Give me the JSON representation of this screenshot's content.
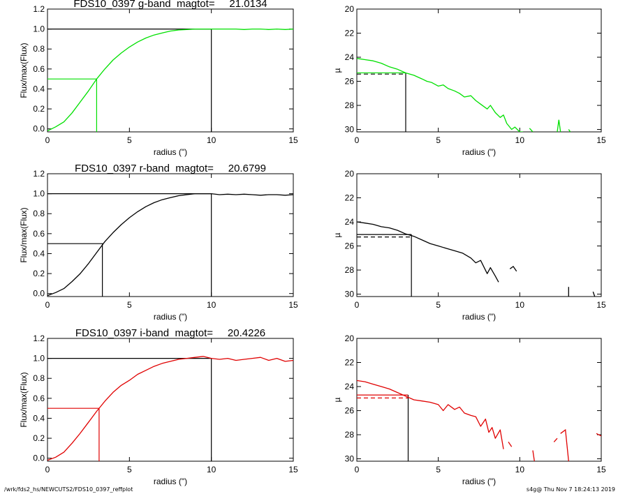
{
  "footer": {
    "path": "/wrk/fds2_hs/NEWCUTS2/FDS10_0397_reffplot",
    "stamp": "s4g@  Thu Nov  7 18:24:13 2019"
  },
  "chart_data": [
    {
      "type": "line",
      "band": "g",
      "title": "FDS10_0397 g-band  magtot=     21.0134",
      "xlabel": "radius (\")",
      "ylabel": "Flux/max(Flux)",
      "xlim": [
        0,
        15
      ],
      "ylim": [
        -0.03,
        1.2
      ],
      "xticks": [
        0,
        5,
        10,
        15
      ],
      "xtick_labels": [
        "0",
        "5",
        "10",
        "15"
      ],
      "yticks": [
        0,
        0.2,
        0.4,
        0.6,
        0.8,
        1.0,
        1.2
      ],
      "ytick_labels": [
        "0.0",
        "0.2",
        "0.4",
        "0.6",
        "0.8",
        "1.0",
        "1.2"
      ],
      "color": "#00e000",
      "series": [
        {
          "x": [
            0,
            0.5,
            1,
            1.5,
            2,
            2.5,
            3,
            3.5,
            4,
            4.5,
            5,
            5.5,
            6,
            6.5,
            7,
            7.5,
            8,
            8.5,
            9,
            9.5,
            10,
            10.5,
            11,
            11.5,
            12,
            12.5,
            13,
            13.5,
            14,
            14.5,
            15
          ],
          "y": [
            -0.02,
            0.02,
            0.07,
            0.16,
            0.27,
            0.38,
            0.5,
            0.6,
            0.69,
            0.76,
            0.82,
            0.87,
            0.91,
            0.94,
            0.96,
            0.98,
            0.99,
            0.995,
            1.0,
            1.0,
            1.0,
            1.0,
            1.0,
            1.0,
            0.995,
            1.0,
            1.0,
            0.995,
            1.0,
            0.995,
            1.0
          ]
        }
      ],
      "reference_lines": {
        "half_light": {
          "x": 3.0,
          "y": 0.5,
          "color": "#00e000"
        },
        "total": {
          "x": 10.0,
          "y": 1.0,
          "color": "#000000"
        }
      }
    },
    {
      "type": "line",
      "band": "g",
      "title": "",
      "xlabel": "radius (\")",
      "ylabel": "µ",
      "xlim": [
        0,
        15
      ],
      "ylim": [
        30.2,
        20
      ],
      "y_inverted": true,
      "xticks": [
        0,
        5,
        10,
        15
      ],
      "xtick_labels": [
        "0",
        "5",
        "10",
        "15"
      ],
      "yticks": [
        20,
        22,
        24,
        26,
        28,
        30
      ],
      "ytick_labels": [
        "20",
        "22",
        "24",
        "26",
        "28",
        "30"
      ],
      "color": "#00e000",
      "series": [
        {
          "x": [
            0,
            0.5,
            1,
            1.5,
            2,
            2.5,
            3,
            3.5,
            4,
            4.3,
            4.6,
            5,
            5.3,
            5.6,
            6,
            6.3,
            6.6,
            7,
            7.3,
            7.6,
            8,
            8.2,
            8.5,
            8.8,
            9,
            9.2,
            9.5,
            9.7,
            10,
            10.2
          ],
          "y": [
            24.1,
            24.2,
            24.3,
            24.5,
            24.8,
            25.0,
            25.3,
            25.5,
            25.8,
            26.0,
            26.1,
            26.4,
            26.3,
            26.6,
            26.8,
            27.0,
            27.3,
            27.2,
            27.6,
            27.9,
            28.3,
            28.0,
            28.6,
            29.0,
            28.8,
            29.5,
            30.0,
            29.8,
            30.3,
            30.4
          ]
        }
      ],
      "extra_segments": [
        {
          "x": [
            10.6,
            10.8
          ],
          "y": [
            29.9,
            30.2
          ]
        },
        {
          "x": [
            12.3,
            12.4,
            12.5
          ],
          "y": [
            30.3,
            29.2,
            30.3
          ]
        },
        {
          "x": [
            13.0,
            13.1
          ],
          "y": [
            30.0,
            30.2
          ]
        }
      ],
      "reference_lines": {
        "mu_solid": {
          "x": 3.0,
          "y": 25.3,
          "color": "#00e000"
        },
        "mu_dashed": {
          "y": 25.4,
          "color": "#000000",
          "dash": true
        },
        "radius": {
          "x": 3.0,
          "color": "#000000"
        }
      }
    },
    {
      "type": "line",
      "band": "r",
      "title": "FDS10_0397 r-band  magtot=     20.6799",
      "xlabel": "radius (\")",
      "ylabel": "Flux/max(Flux)",
      "xlim": [
        0,
        15
      ],
      "ylim": [
        -0.03,
        1.2
      ],
      "xticks": [
        0,
        5,
        10,
        15
      ],
      "xtick_labels": [
        "0",
        "5",
        "10",
        "15"
      ],
      "yticks": [
        0,
        0.2,
        0.4,
        0.6,
        0.8,
        1.0,
        1.2
      ],
      "ytick_labels": [
        "0.0",
        "0.2",
        "0.4",
        "0.6",
        "0.8",
        "1.0",
        "1.2"
      ],
      "color": "#000000",
      "series": [
        {
          "x": [
            0,
            0.5,
            1,
            1.5,
            2,
            2.5,
            3,
            3.5,
            4,
            4.5,
            5,
            5.5,
            6,
            6.5,
            7,
            7.5,
            8,
            8.5,
            9,
            9.5,
            10,
            10.5,
            11,
            11.5,
            12,
            12.5,
            13,
            13.5,
            14,
            14.5,
            15
          ],
          "y": [
            -0.02,
            0.01,
            0.05,
            0.12,
            0.2,
            0.3,
            0.41,
            0.52,
            0.61,
            0.69,
            0.76,
            0.82,
            0.87,
            0.91,
            0.94,
            0.96,
            0.98,
            0.99,
            1.0,
            1.0,
            1.0,
            0.99,
            0.995,
            0.99,
            0.995,
            0.99,
            0.985,
            0.99,
            0.99,
            0.985,
            0.99
          ]
        }
      ],
      "reference_lines": {
        "half_light": {
          "x": 3.35,
          "y": 0.5,
          "color": "#000000"
        },
        "total": {
          "x": 10.0,
          "y": 1.0,
          "color": "#000000"
        }
      }
    },
    {
      "type": "line",
      "band": "r",
      "title": "",
      "xlabel": "radius (\")",
      "ylabel": "µ",
      "xlim": [
        0,
        15
      ],
      "ylim": [
        30.2,
        20
      ],
      "y_inverted": true,
      "xticks": [
        0,
        5,
        10,
        15
      ],
      "xtick_labels": [
        "0",
        "5",
        "10",
        "15"
      ],
      "yticks": [
        20,
        22,
        24,
        26,
        28,
        30
      ],
      "ytick_labels": [
        "20",
        "22",
        "24",
        "26",
        "28",
        "30"
      ],
      "color": "#000000",
      "series": [
        {
          "x": [
            0,
            0.5,
            1,
            1.5,
            2,
            2.5,
            3,
            3.5,
            4,
            4.5,
            5,
            5.5,
            6,
            6.5,
            7,
            7.3,
            7.6,
            8,
            8.2,
            8.5,
            8.7
          ],
          "y": [
            24.0,
            24.1,
            24.2,
            24.4,
            24.5,
            24.7,
            25.0,
            25.2,
            25.5,
            25.8,
            26.0,
            26.2,
            26.4,
            26.6,
            27.0,
            27.4,
            27.2,
            28.3,
            27.8,
            28.5,
            29.0
          ]
        }
      ],
      "extra_segments": [
        {
          "x": [
            9.4,
            9.6,
            9.8
          ],
          "y": [
            27.9,
            27.7,
            28.1
          ]
        },
        {
          "x": [
            13.0,
            13.0
          ],
          "y": [
            29.4,
            30.2
          ]
        },
        {
          "x": [
            14.5,
            14.6
          ],
          "y": [
            29.8,
            30.2
          ]
        }
      ],
      "reference_lines": {
        "mu_solid": {
          "x": 3.35,
          "y": 25.05,
          "color": "#000000"
        },
        "mu_dashed": {
          "y": 25.25,
          "color": "#000000",
          "dash": true
        },
        "radius": {
          "x": 3.35,
          "color": "#000000"
        }
      }
    },
    {
      "type": "line",
      "band": "i",
      "title": "FDS10_0397 i-band  magtot=     20.4226",
      "xlabel": "radius (\")",
      "ylabel": "Flux/max(Flux)",
      "xlim": [
        0,
        15
      ],
      "ylim": [
        -0.03,
        1.2
      ],
      "xticks": [
        0,
        5,
        10,
        15
      ],
      "xtick_labels": [
        "0",
        "5",
        "10",
        "15"
      ],
      "yticks": [
        0,
        0.2,
        0.4,
        0.6,
        0.8,
        1.0,
        1.2
      ],
      "ytick_labels": [
        "0.0",
        "0.2",
        "0.4",
        "0.6",
        "0.8",
        "1.0",
        "1.2"
      ],
      "color": "#e00000",
      "series": [
        {
          "x": [
            0,
            0.5,
            1,
            1.5,
            2,
            2.5,
            3,
            3.5,
            4,
            4.5,
            5,
            5.5,
            6,
            6.5,
            7,
            7.5,
            8,
            8.5,
            9,
            9.5,
            10,
            10.5,
            11,
            11.5,
            12,
            12.5,
            13,
            13.5,
            14,
            14.5,
            15
          ],
          "y": [
            -0.02,
            0.01,
            0.06,
            0.15,
            0.25,
            0.36,
            0.47,
            0.57,
            0.66,
            0.73,
            0.78,
            0.84,
            0.88,
            0.92,
            0.95,
            0.97,
            0.99,
            1.0,
            1.01,
            1.02,
            1.0,
            0.99,
            1.0,
            0.98,
            0.99,
            1.0,
            1.01,
            0.98,
            1.0,
            0.97,
            0.98
          ]
        }
      ],
      "reference_lines": {
        "half_light": {
          "x": 3.15,
          "y": 0.5,
          "color": "#e00000"
        },
        "total": {
          "x": 10.0,
          "y": 1.0,
          "color": "#000000"
        }
      }
    },
    {
      "type": "line",
      "band": "i",
      "title": "",
      "xlabel": "radius (\")",
      "ylabel": "µ",
      "xlim": [
        0,
        15
      ],
      "ylim": [
        30.2,
        20
      ],
      "y_inverted": true,
      "xticks": [
        0,
        5,
        10,
        15
      ],
      "xtick_labels": [
        "0",
        "5",
        "10",
        "15"
      ],
      "yticks": [
        20,
        22,
        24,
        26,
        28,
        30
      ],
      "ytick_labels": [
        "20",
        "22",
        "24",
        "26",
        "28",
        "30"
      ],
      "color": "#e00000",
      "series": [
        {
          "x": [
            0,
            0.5,
            1,
            1.5,
            2,
            2.5,
            3,
            3.5,
            4,
            4.5,
            5,
            5.3,
            5.6,
            6,
            6.3,
            6.6,
            7,
            7.3,
            7.6,
            7.9,
            8.1,
            8.3,
            8.5,
            8.8,
            9.0
          ],
          "y": [
            23.5,
            23.6,
            23.8,
            24.0,
            24.2,
            24.5,
            24.8,
            25.1,
            25.2,
            25.3,
            25.5,
            26.0,
            25.5,
            25.9,
            25.7,
            26.2,
            26.4,
            26.5,
            27.3,
            26.7,
            27.8,
            27.4,
            28.3,
            27.6,
            29.2
          ]
        }
      ],
      "extra_segments": [
        {
          "x": [
            9.3,
            9.5
          ],
          "y": [
            28.6,
            29.0
          ]
        },
        {
          "x": [
            10.8,
            10.9
          ],
          "y": [
            29.3,
            30.2
          ]
        },
        {
          "x": [
            12.1,
            12.3
          ],
          "y": [
            28.6,
            28.3
          ]
        },
        {
          "x": [
            12.5,
            12.8,
            13.0
          ],
          "y": [
            27.9,
            27.6,
            30.2
          ]
        },
        {
          "x": [
            14.7,
            15.0
          ],
          "y": [
            27.9,
            28.1
          ]
        }
      ],
      "reference_lines": {
        "mu_solid": {
          "x": 3.15,
          "y": 24.7,
          "color": "#e00000"
        },
        "mu_dashed": {
          "y": 24.95,
          "color": "#e00000",
          "dash": true
        },
        "radius": {
          "x": 3.15,
          "color": "#000000"
        }
      }
    }
  ]
}
